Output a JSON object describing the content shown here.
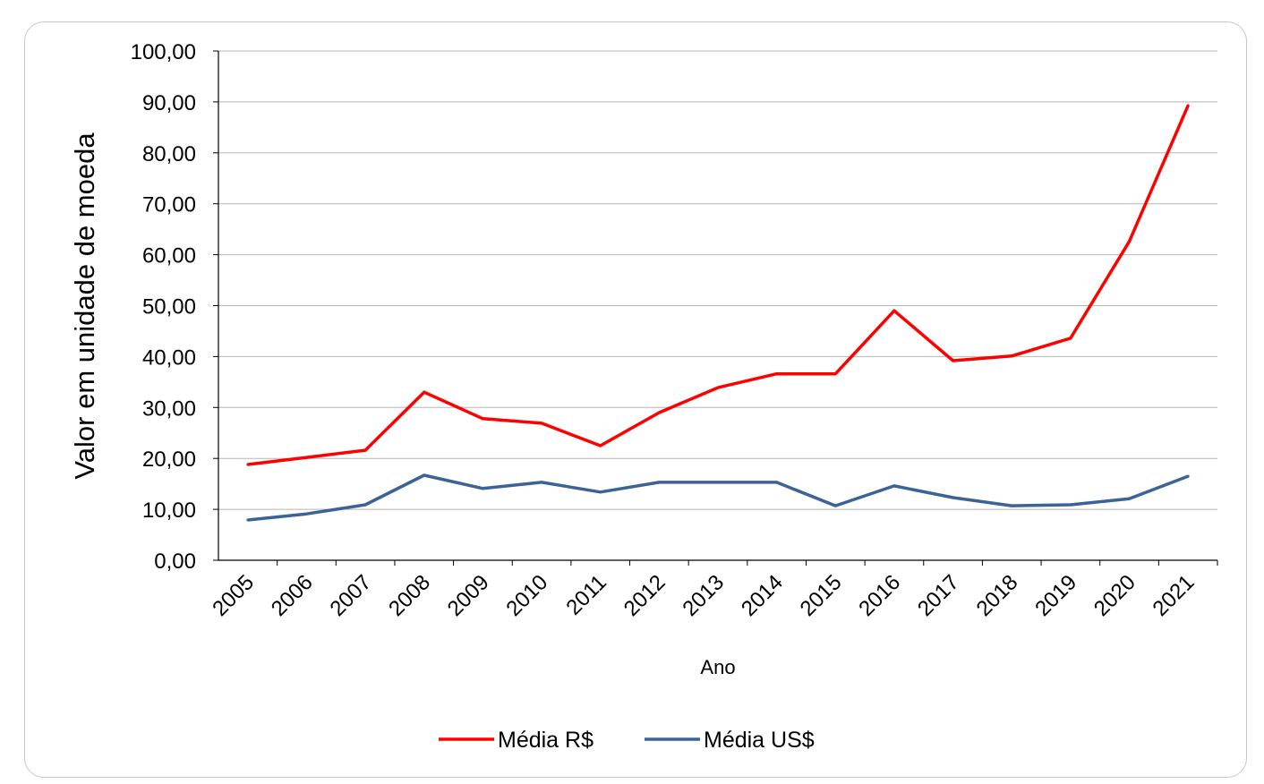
{
  "chart_data": {
    "type": "line",
    "title": "",
    "xlabel": "Ano",
    "ylabel": "Valor em unidade de moeda",
    "ylim": [
      0,
      100
    ],
    "yticks": [
      "0,00",
      "10,00",
      "20,00",
      "30,00",
      "40,00",
      "50,00",
      "60,00",
      "70,00",
      "80,00",
      "90,00",
      "100,00"
    ],
    "grid": true,
    "legend_position": "bottom",
    "categories": [
      "2005",
      "2006",
      "2007",
      "2008",
      "2009",
      "2010",
      "2011",
      "2012",
      "2013",
      "2014",
      "2015",
      "2016",
      "2017",
      "2018",
      "2019",
      "2020",
      "2021"
    ],
    "series": [
      {
        "name": "Média R$",
        "color": "#ff0000",
        "values": [
          18.8,
          20.2,
          21.6,
          33.0,
          27.8,
          26.9,
          22.5,
          29.0,
          33.9,
          36.6,
          36.6,
          49.0,
          39.2,
          40.1,
          43.6,
          62.6,
          89.3
        ]
      },
      {
        "name": "Média US$",
        "color": "#3c6397",
        "values": [
          7.9,
          9.1,
          10.9,
          16.7,
          14.1,
          15.3,
          13.4,
          15.3,
          15.3,
          15.3,
          10.7,
          14.6,
          12.3,
          10.7,
          10.9,
          12.1,
          16.5
        ]
      }
    ]
  }
}
